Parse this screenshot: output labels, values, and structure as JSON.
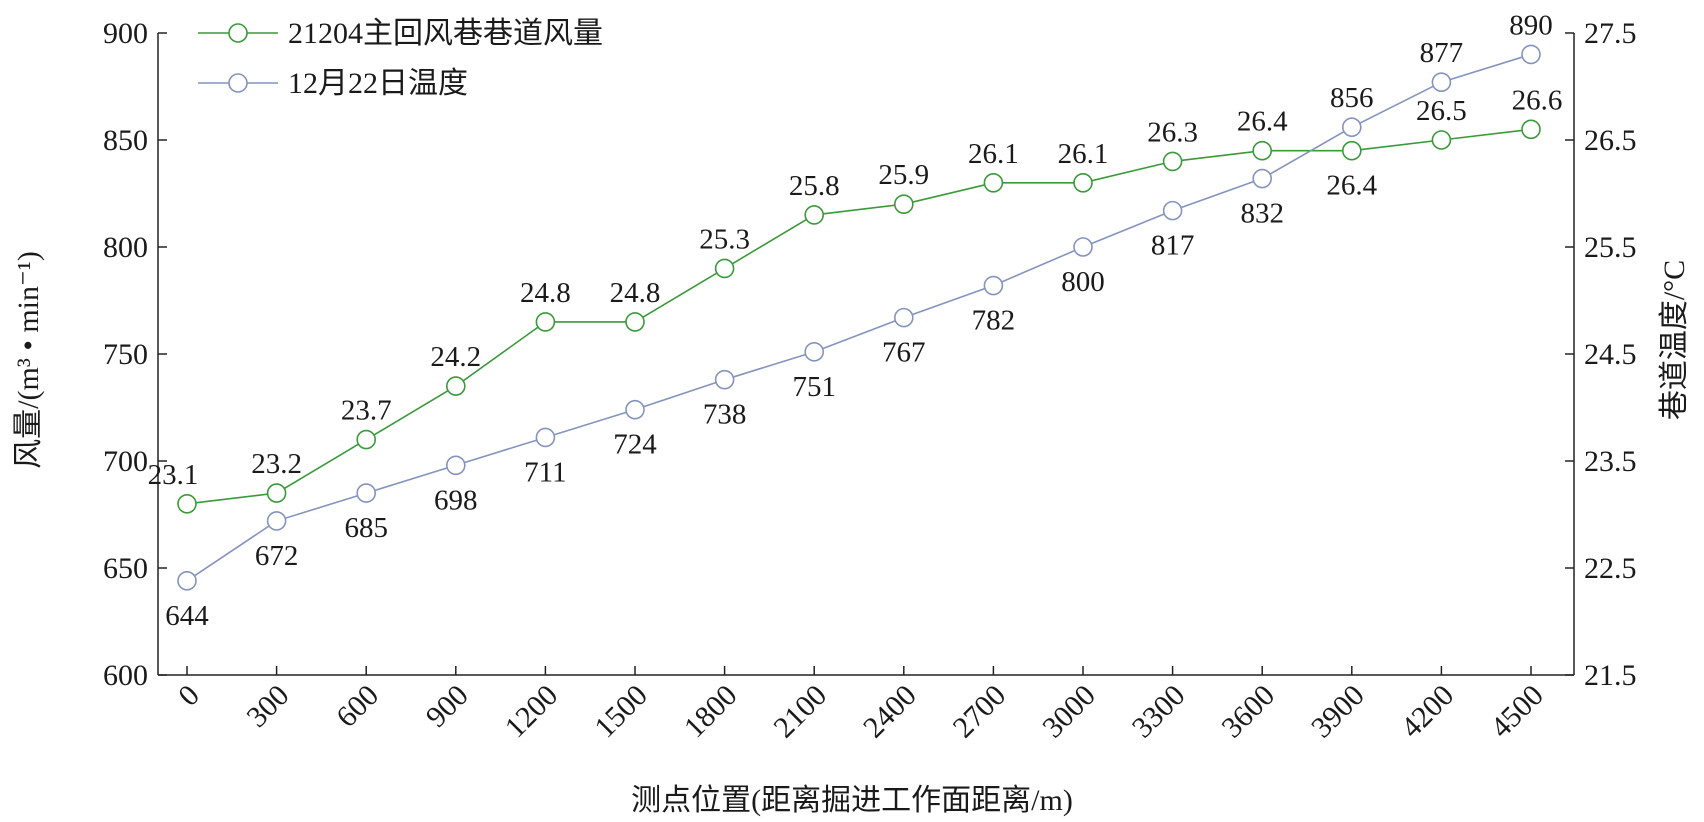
{
  "chart_data": {
    "type": "line",
    "xlabel": "测点位置(距离掘进工作面距离/m)",
    "ylabel_left": "风量/(m³ • min⁻¹)",
    "ylabel_right": "巷道温度/°C",
    "categories": [
      "0",
      "300",
      "600",
      "900",
      "1200",
      "1500",
      "1800",
      "2100",
      "2400",
      "2700",
      "3000",
      "3300",
      "3600",
      "3900",
      "4200",
      "4500"
    ],
    "ylim_left": [
      600,
      900
    ],
    "yticks_left": [
      "600",
      "650",
      "700",
      "750",
      "800",
      "850",
      "900"
    ],
    "ylim_right": [
      21.5,
      27.5
    ],
    "yticks_right": [
      "21.5",
      "22.5",
      "23.5",
      "24.5",
      "25.5",
      "26.5",
      "27.5"
    ],
    "series": [
      {
        "name": "21204主回风巷巷道风量",
        "axis": "left",
        "color": "#3a9a3a",
        "values": [
          680,
          685,
          710,
          735,
          765,
          765,
          790,
          815,
          820,
          830,
          830,
          840,
          845,
          845,
          850,
          855
        ],
        "labels": [
          "23.1",
          "23.2",
          "23.7",
          "24.2",
          "24.8",
          "24.8",
          "25.3",
          "25.8",
          "25.9",
          "26.1",
          "26.1",
          "26.3",
          "26.4",
          "26.4",
          "26.5",
          "26.6"
        ]
      },
      {
        "name": "12月22日温度",
        "axis": "left",
        "color": "#8494bf",
        "values": [
          644,
          672,
          685,
          698,
          711,
          724,
          738,
          751,
          767,
          782,
          800,
          817,
          832,
          856,
          877,
          890
        ],
        "labels": [
          "644",
          "672",
          "685",
          "698",
          "711",
          "724",
          "738",
          "751",
          "767",
          "782",
          "800",
          "817",
          "832",
          "856",
          "877",
          "890"
        ]
      }
    ],
    "grid": false,
    "legend_position": "top-left"
  }
}
